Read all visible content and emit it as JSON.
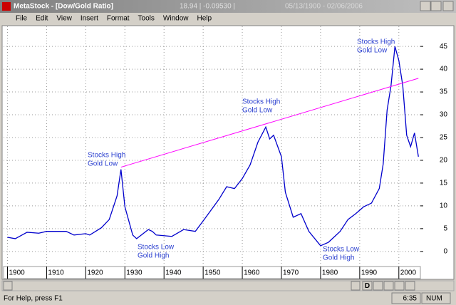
{
  "window": {
    "app": "MetaStock - [Dow/Gold Ratio]",
    "readout": "18.94 | -0.09530 |",
    "range": "05/13/1900 - 02/06/2006"
  },
  "menu": [
    "File",
    "Edit",
    "View",
    "Insert",
    "Format",
    "Tools",
    "Window",
    "Help"
  ],
  "chart_data": {
    "type": "line",
    "x": [
      1900,
      1902,
      1905,
      1908,
      1910,
      1915,
      1917,
      1920,
      1921,
      1924,
      1926,
      1928,
      1929,
      1930,
      1932,
      1933,
      1936,
      1937,
      1938,
      1942,
      1945,
      1948,
      1950,
      1954,
      1956,
      1958,
      1960,
      1962,
      1964,
      1966,
      1967,
      1968,
      1970,
      1971,
      1973,
      1975,
      1977,
      1980,
      1982,
      1985,
      1987,
      1989,
      1991,
      1993,
      1995,
      1996,
      1997,
      1998,
      1999,
      2000,
      2001,
      2002,
      2003,
      2004,
      2005
    ],
    "series": [
      {
        "color": "#0000cc",
        "values": [
          3.1,
          2.8,
          4.2,
          4,
          4.4,
          4.4,
          3.6,
          3.9,
          3.6,
          5.2,
          7,
          12.2,
          18,
          9.8,
          3.6,
          2.8,
          4.8,
          4.4,
          3.6,
          3.3,
          4.8,
          4.4,
          6.7,
          11.4,
          14.2,
          13.8,
          16,
          19,
          24,
          27.3,
          24.7,
          25.5,
          20.8,
          13,
          7.5,
          8.3,
          4.4,
          1.25,
          2,
          4.4,
          7,
          8.3,
          9.8,
          10.6,
          13.8,
          19.2,
          31,
          36.4,
          45,
          41.9,
          36.4,
          25.5,
          23,
          26,
          20.8
        ]
      }
    ],
    "xlim": [
      1899,
      2005.5
    ],
    "ylim": [
      -3,
      49.4
    ],
    "xticks": [
      1900,
      1910,
      1920,
      1930,
      1940,
      1950,
      1960,
      1970,
      1980,
      1990,
      2000
    ],
    "yticks": [
      0,
      5,
      10,
      15,
      20,
      25,
      30,
      35,
      40,
      45
    ],
    "grid": true,
    "trendline": {
      "x": [
        1929,
        2005
      ],
      "y": [
        18.5,
        38
      ],
      "color": "#ff00ff"
    },
    "annotations": [
      [
        "Stocks High",
        "Gold Low"
      ],
      [
        "Stocks Low",
        "Gold High"
      ],
      [
        "Stocks High",
        "Gold Low"
      ],
      [
        "Stocks Low",
        "Gold High"
      ],
      [
        "Stocks High",
        "Gold Low"
      ]
    ]
  },
  "toolbar": {
    "period": "D"
  },
  "status": {
    "help": "For Help, press F1",
    "time": "6:35",
    "mode": "NUM"
  }
}
